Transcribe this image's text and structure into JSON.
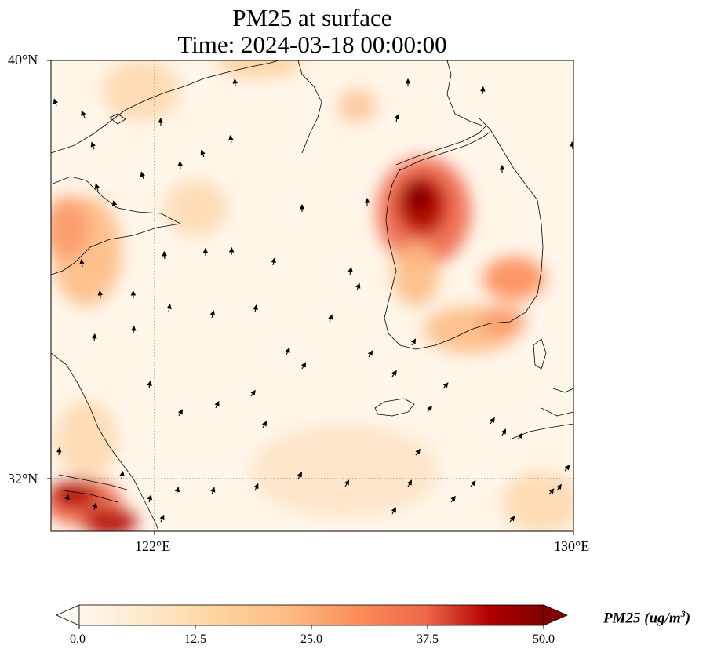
{
  "title": {
    "line1": "PM25 at surface",
    "line2": "Time: 2024-03-18 00:00:00"
  },
  "axes": {
    "lat_labels": [
      "40°N",
      "32°N"
    ],
    "lon_labels": [
      "122°E",
      "130°E"
    ],
    "lat_range": [
      31,
      40
    ],
    "lon_range": [
      120,
      130
    ],
    "gridlines": "dotted at 122°E and 32°N"
  },
  "colorbar": {
    "label": "PM25 (ug/m",
    "label_sup": "3",
    "label_close": ")",
    "ticks": [
      "0.0",
      "12.5",
      "25.0",
      "37.5",
      "50.0"
    ],
    "range": [
      0,
      50
    ],
    "colormap": "OrRd",
    "extend": "both"
  },
  "map": {
    "field": "PM25",
    "units": "ug/m3",
    "background_color": "#fff6ea",
    "overlays": [
      "coastlines",
      "wind vectors"
    ]
  }
}
